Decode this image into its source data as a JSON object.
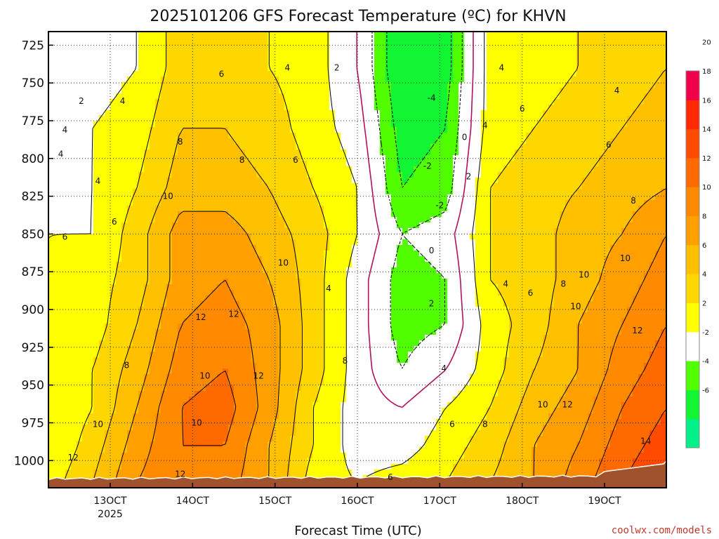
{
  "chart_data": {
    "type": "heatmap",
    "title": "2025101206 GFS Forecast Temperature (ºC) for KHVN",
    "xlabel": "Forecast Time (UTC)",
    "ylabel": "",
    "credit": "coolwx.com/models",
    "x_ticks": [
      {
        "hour": 130,
        "label": "13OCT",
        "sublabel": "2025"
      },
      {
        "hour": 140,
        "label": "14OCT",
        "sublabel": ""
      },
      {
        "hour": 150,
        "label": "15OCT",
        "sublabel": ""
      },
      {
        "hour": 160,
        "label": "16OCT",
        "sublabel": ""
      },
      {
        "hour": 170,
        "label": "17OCT",
        "sublabel": ""
      },
      {
        "hour": 180,
        "label": "18OCT",
        "sublabel": ""
      },
      {
        "hour": 190,
        "label": "19OCT",
        "sublabel": ""
      }
    ],
    "y_ticks": [
      725,
      750,
      775,
      800,
      825,
      850,
      875,
      900,
      925,
      950,
      975,
      1000
    ],
    "xlim": [
      122.5,
      197.5
    ],
    "ylim": [
      1018,
      716
    ],
    "grid": true,
    "colorbar": {
      "levels": [
        -8,
        -6,
        -4,
        -2,
        2,
        4,
        6,
        8,
        10,
        12,
        14,
        16,
        18,
        20,
        22
      ],
      "tick_labels": [
        "-6",
        "-4",
        "-2",
        "2",
        "4",
        "6",
        "8",
        "10",
        "12",
        "14",
        "16",
        "18",
        "20"
      ],
      "colors": [
        "#00f08a",
        "#11f533",
        "#52ff00",
        "#ffffff",
        "#ffff00",
        "#ffd700",
        "#ffc000",
        "#ffa000",
        "#ff8a00",
        "#ff6a00",
        "#ff4a00",
        "#ff2800",
        "#f2004a"
      ]
    },
    "series": [
      {
        "values": [
          3,
          6,
          10,
          12,
          11,
          8,
          3,
          2,
          3,
          4,
          6,
          8,
          11,
          14,
          16
        ]
      },
      {
        "values": [
          2,
          5,
          9,
          12,
          12,
          8,
          4,
          1,
          1,
          3,
          5,
          8,
          10,
          13,
          15
        ]
      },
      {
        "values": [
          2,
          4,
          8,
          12,
          13,
          9,
          4,
          1,
          0,
          2,
          4,
          7,
          9,
          12,
          14
        ]
      },
      {
        "values": [
          2,
          4,
          7,
          11,
          12,
          9,
          5,
          1,
          -2,
          0,
          3,
          6,
          8,
          11,
          13
        ]
      },
      {
        "values": [
          2,
          3,
          6,
          10,
          11,
          9,
          5,
          1,
          -3,
          -2,
          3,
          5,
          8,
          10,
          12
        ]
      },
      {
        "values": [
          2,
          3,
          5,
          9,
          10,
          8,
          5,
          1,
          -3,
          -2,
          4,
          5,
          7,
          9,
          11
        ]
      },
      {
        "values": [
          2,
          2,
          5,
          9,
          9,
          7,
          5,
          2,
          -2,
          -1,
          4,
          5,
          7,
          8,
          10
        ]
      },
      {
        "values": [
          1,
          2,
          4,
          7,
          7,
          6,
          4,
          2,
          -4,
          -3,
          4,
          5,
          6,
          7,
          8
        ]
      },
      {
        "values": [
          1,
          2,
          3,
          6,
          6,
          5,
          3,
          1,
          -5,
          -4,
          3,
          4,
          5,
          6,
          7
        ]
      },
      {
        "values": [
          0,
          1,
          2,
          5,
          5,
          4,
          3,
          0,
          -6,
          -5,
          3,
          3,
          4,
          5,
          6
        ]
      }
    ],
    "pressures": [
      1015,
      990,
      965,
      940,
      910,
      880,
      850,
      820,
      780,
      740
    ],
    "contour_labels": [
      {
        "x": 151.5,
        "p": 740,
        "text": "4"
      },
      {
        "x": 143.5,
        "p": 744,
        "text": "6"
      },
      {
        "x": 157.5,
        "p": 740,
        "text": "2"
      },
      {
        "x": 126.5,
        "p": 762,
        "text": "2"
      },
      {
        "x": 131.5,
        "p": 762,
        "text": "4"
      },
      {
        "x": 124.5,
        "p": 781,
        "text": "4"
      },
      {
        "x": 124.0,
        "p": 797,
        "text": "4"
      },
      {
        "x": 128.5,
        "p": 815,
        "text": "4"
      },
      {
        "x": 138.5,
        "p": 789,
        "text": "8"
      },
      {
        "x": 146.0,
        "p": 801,
        "text": "8"
      },
      {
        "x": 152.5,
        "p": 801,
        "text": "6"
      },
      {
        "x": 137.0,
        "p": 825,
        "text": "10"
      },
      {
        "x": 130.5,
        "p": 842,
        "text": "6"
      },
      {
        "x": 124.5,
        "p": 852,
        "text": "6"
      },
      {
        "x": 151.0,
        "p": 869,
        "text": "10"
      },
      {
        "x": 141.0,
        "p": 905,
        "text": "12"
      },
      {
        "x": 145.0,
        "p": 903,
        "text": "12"
      },
      {
        "x": 156.5,
        "p": 886,
        "text": "4"
      },
      {
        "x": 158.5,
        "p": 934,
        "text": "8"
      },
      {
        "x": 132.0,
        "p": 937,
        "text": "8"
      },
      {
        "x": 141.5,
        "p": 944,
        "text": "10"
      },
      {
        "x": 148.0,
        "p": 944,
        "text": "12"
      },
      {
        "x": 128.5,
        "p": 976,
        "text": "10"
      },
      {
        "x": 140.5,
        "p": 975,
        "text": "10"
      },
      {
        "x": 125.5,
        "p": 998,
        "text": "12"
      },
      {
        "x": 138.5,
        "p": 1009,
        "text": "12"
      },
      {
        "x": 164.0,
        "p": 1011,
        "text": "6"
      },
      {
        "x": 169.0,
        "p": 861,
        "text": "0"
      },
      {
        "x": 169.0,
        "p": 896,
        "text": "2"
      },
      {
        "x": 170.5,
        "p": 939,
        "text": "4"
      },
      {
        "x": 171.5,
        "p": 976,
        "text": "6"
      },
      {
        "x": 175.5,
        "p": 976,
        "text": "8"
      },
      {
        "x": 169.0,
        "p": 760,
        "text": "-4"
      },
      {
        "x": 168.5,
        "p": 805,
        "text": "-2"
      },
      {
        "x": 170.0,
        "p": 831,
        "text": "-2"
      },
      {
        "x": 173.0,
        "p": 786,
        "text": "0"
      },
      {
        "x": 173.5,
        "p": 812,
        "text": "2"
      },
      {
        "x": 175.5,
        "p": 778,
        "text": "4"
      },
      {
        "x": 177.5,
        "p": 740,
        "text": "4"
      },
      {
        "x": 180.0,
        "p": 767,
        "text": "6"
      },
      {
        "x": 178.0,
        "p": 883,
        "text": "4"
      },
      {
        "x": 181.0,
        "p": 889,
        "text": "6"
      },
      {
        "x": 185.0,
        "p": 883,
        "text": "8"
      },
      {
        "x": 187.5,
        "p": 877,
        "text": "10"
      },
      {
        "x": 186.5,
        "p": 898,
        "text": "10"
      },
      {
        "x": 191.5,
        "p": 755,
        "text": "4"
      },
      {
        "x": 190.5,
        "p": 791,
        "text": "6"
      },
      {
        "x": 193.5,
        "p": 828,
        "text": "8"
      },
      {
        "x": 192.5,
        "p": 866,
        "text": "10"
      },
      {
        "x": 194.0,
        "p": 914,
        "text": "12"
      },
      {
        "x": 182.5,
        "p": 963,
        "text": "10"
      },
      {
        "x": 185.5,
        "p": 963,
        "text": "12"
      },
      {
        "x": 195.0,
        "p": 987,
        "text": "14"
      }
    ]
  }
}
